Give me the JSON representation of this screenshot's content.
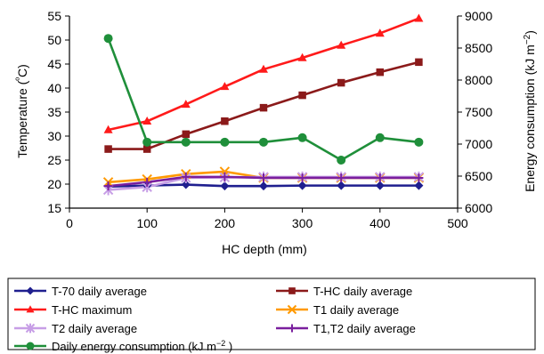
{
  "chart_data": {
    "type": "line",
    "xlabel": "HC depth (mm)",
    "ylabel_left_main": "Temperature (",
    "ylabel_left_degree": "º",
    "ylabel_left_tail": "C)",
    "ylabel_right_main": "Energy consumption (kJ m",
    "ylabel_right_sup": "−2",
    "ylabel_right_tail": ")",
    "x_range": [
      0,
      500
    ],
    "x_ticks": [
      0,
      100,
      200,
      300,
      400,
      500
    ],
    "x_tick_labels": [
      "0",
      "100",
      "200",
      "300",
      "400",
      "500"
    ],
    "y_left_range": [
      15,
      55
    ],
    "y_left_ticks": [
      15,
      20,
      25,
      30,
      35,
      40,
      45,
      50,
      55
    ],
    "y_left_tick_labels": [
      "15",
      "20",
      "25",
      "30",
      "35",
      "40",
      "45",
      "50",
      "55"
    ],
    "y_right_range": [
      6000,
      9000
    ],
    "y_right_ticks": [
      6000,
      6500,
      7000,
      7500,
      8000,
      8500,
      9000
    ],
    "y_right_tick_labels": [
      "6000",
      "6500",
      "7000",
      "7500",
      "8000",
      "8500",
      "9000"
    ],
    "x": [
      50,
      100,
      150,
      200,
      250,
      300,
      350,
      400,
      450
    ],
    "series": [
      {
        "name": "T-70 daily average",
        "axis": "left",
        "color": "#1f1f8f",
        "marker": "diamond",
        "values": [
          19.5,
          19.7,
          19.9,
          19.6,
          19.6,
          19.7,
          19.7,
          19.7,
          19.7
        ]
      },
      {
        "name": "T-HC daily average",
        "axis": "left",
        "color": "#8b1a1a",
        "marker": "square",
        "values": [
          27.3,
          27.3,
          30.4,
          33.1,
          35.9,
          38.5,
          41.1,
          43.3,
          45.4
        ]
      },
      {
        "name": "T-HC maximum",
        "axis": "left",
        "color": "#ff1a1a",
        "marker": "triangle",
        "values": [
          31.3,
          33.1,
          36.6,
          40.3,
          43.9,
          46.3,
          48.9,
          51.4,
          54.5
        ]
      },
      {
        "name": "T1 daily average",
        "axis": "left",
        "color": "#ff9900",
        "marker": "x",
        "values": [
          20.4,
          21.0,
          22.1,
          22.6,
          21.3,
          21.3,
          21.3,
          21.3,
          21.3
        ]
      },
      {
        "name": "T2 daily average",
        "axis": "left",
        "color": "#c79ee6",
        "marker": "asterisk",
        "values": [
          18.8,
          19.4,
          21.3,
          21.4,
          21.5,
          21.5,
          21.5,
          21.5,
          21.5
        ]
      },
      {
        "name": "T1,T2 daily average",
        "axis": "left",
        "color": "#7a1f9e",
        "marker": "plus",
        "values": [
          19.6,
          20.4,
          21.5,
          21.5,
          21.3,
          21.3,
          21.3,
          21.3,
          21.3
        ]
      },
      {
        "name_main": "Daily energy consumption (kJ m",
        "name_sup": "−2",
        "name_tail": " )",
        "axis": "right",
        "color": "#1f8f3a",
        "marker": "circle",
        "values": [
          8650,
          7030,
          7030,
          7030,
          7030,
          7100,
          6750,
          7100,
          7030
        ]
      }
    ],
    "legend_position": "bottom"
  }
}
